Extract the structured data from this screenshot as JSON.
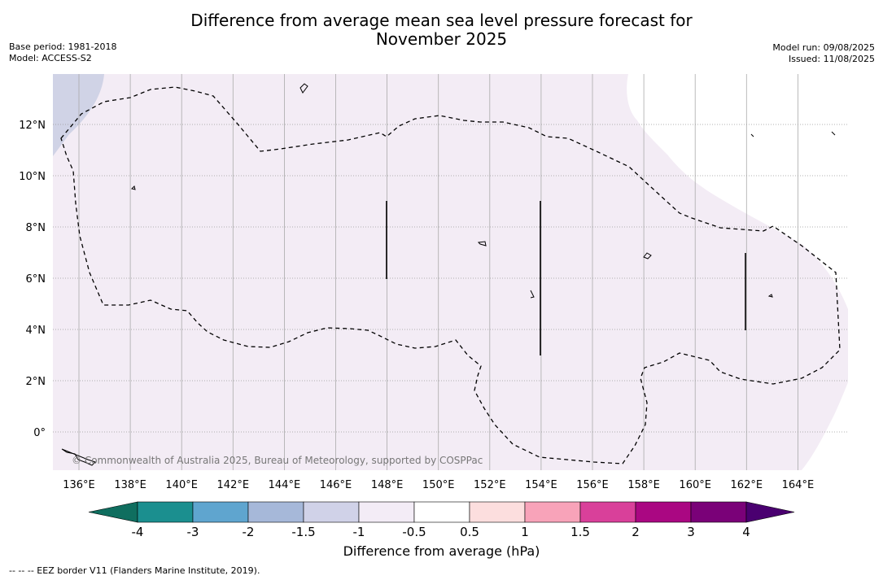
{
  "header": {
    "title_line1": "Difference from average mean sea level pressure forecast for",
    "title_line2": "November 2025",
    "base_period": "Base period: 1981-2018",
    "model": "Model: ACCESS-S2",
    "model_run": "Model run: 09/08/2025",
    "issued": "Issued: 11/08/2025"
  },
  "map": {
    "lon_labels": [
      "136°E",
      "138°E",
      "140°E",
      "142°E",
      "144°E",
      "146°E",
      "148°E",
      "150°E",
      "152°E",
      "154°E",
      "156°E",
      "158°E",
      "160°E",
      "162°E",
      "164°E"
    ],
    "lat_labels": [
      "12°N",
      "10°N",
      "8°N",
      "6°N",
      "4°N",
      "2°N",
      "0°"
    ],
    "attribution": "© Commonwealth of Australia 2025, Bureau of Meteorology, supported by COSPPac",
    "colors": {
      "background": "#f3ecf5",
      "negative_region": "#d0d3e6",
      "grid": "#888888",
      "eez_line": "#000000"
    }
  },
  "colorbar": {
    "title": "Difference from average (hPa)",
    "labels": [
      "-4",
      "-3",
      "-2",
      "-1.5",
      "-1",
      "-0.5",
      "0.5",
      "1",
      "1.5",
      "2",
      "3",
      "4"
    ],
    "colors": [
      "#1b8f8f",
      "#5fa5cf",
      "#a6b8d9",
      "#d0d2e8",
      "#f3ecf6",
      "#ffffff",
      "#fcdede",
      "#f8a3b9",
      "#d9409a",
      "#aa0782",
      "#7a0178"
    ],
    "low_extend_color": "#0f6e5f",
    "high_extend_color": "#4a0070"
  },
  "footnote": "--  --  -- EEZ border V11 (Flanders Marine Institute, 2019)."
}
